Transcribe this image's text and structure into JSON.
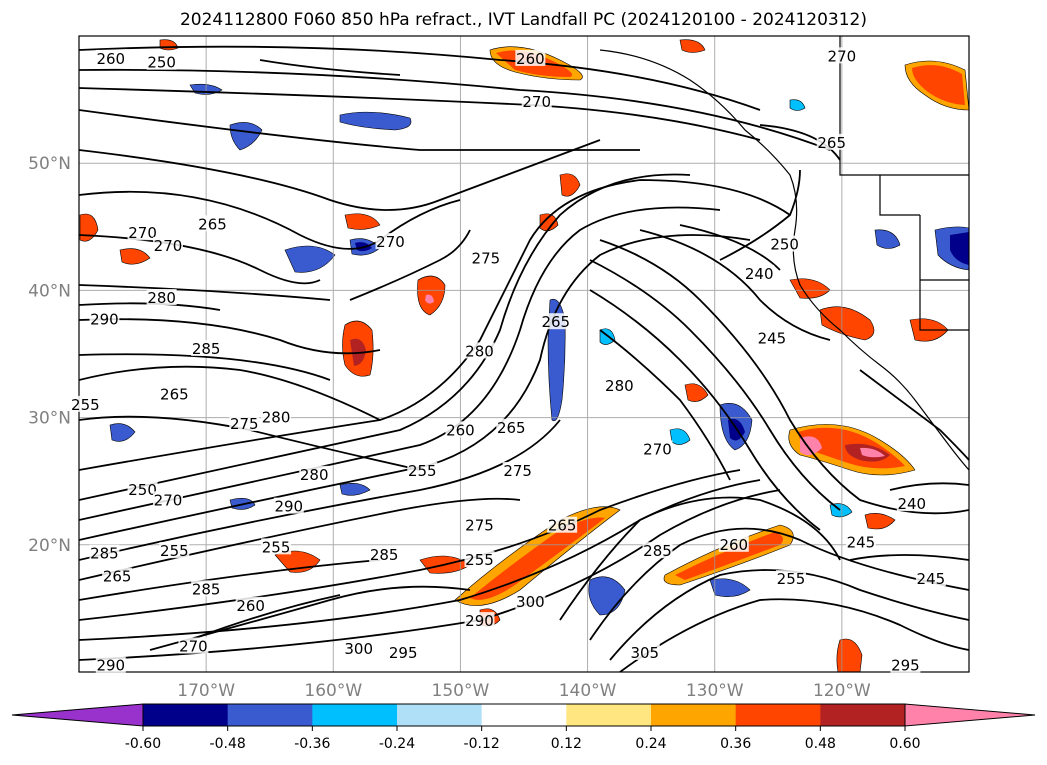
{
  "title": "2024112800 F060 850 hPa refract., IVT Landfall PC (2024120100 - 2024120312)",
  "lat_labels": [
    {
      "lat": 50,
      "text": "50°N"
    },
    {
      "lat": 40,
      "text": "40°N"
    },
    {
      "lat": 30,
      "text": "30°N"
    },
    {
      "lat": 20,
      "text": "20°N"
    }
  ],
  "lon_labels": [
    {
      "lon": -170,
      "text": "170°W"
    },
    {
      "lon": -160,
      "text": "160°W"
    },
    {
      "lon": -150,
      "text": "150°W"
    },
    {
      "lon": -140,
      "text": "140°W"
    },
    {
      "lon": -130,
      "text": "130°W"
    },
    {
      "lon": -120,
      "text": "120°W"
    }
  ],
  "extent": {
    "lon_min": -180,
    "lon_max": -110,
    "lat_min": 10,
    "lat_max": 60
  },
  "colorbar": {
    "ticks": [
      "-0.60",
      "-0.48",
      "-0.36",
      "-0.24",
      "-0.12",
      "0.12",
      "0.24",
      "0.36",
      "0.48",
      "0.60"
    ],
    "colors": [
      "#9932cc",
      "#00008b",
      "#3a5bd0",
      "#00bfff",
      "#b0e0f8",
      "#ffffff",
      "#ffe680",
      "#ffa500",
      "#ff4500",
      "#b22222",
      "#ff82ab"
    ]
  },
  "contour_labels": [
    {
      "text": "260",
      "lon": -177.5,
      "lat": 58.2
    },
    {
      "text": "250",
      "lon": -173.5,
      "lat": 57.9
    },
    {
      "text": "260",
      "lon": -144.5,
      "lat": 58.2
    },
    {
      "text": "270",
      "lon": -144.0,
      "lat": 54.8
    },
    {
      "text": "270",
      "lon": -120.0,
      "lat": 58.4
    },
    {
      "text": "265",
      "lon": -120.8,
      "lat": 51.6
    },
    {
      "text": "265",
      "lon": -169.5,
      "lat": 45.2
    },
    {
      "text": "270",
      "lon": -175.0,
      "lat": 44.5
    },
    {
      "text": "270",
      "lon": -173.0,
      "lat": 43.5
    },
    {
      "text": "270",
      "lon": -155.5,
      "lat": 43.8
    },
    {
      "text": "275",
      "lon": -148.0,
      "lat": 42.5
    },
    {
      "text": "250",
      "lon": -124.5,
      "lat": 43.6
    },
    {
      "text": "240",
      "lon": -126.5,
      "lat": 41.3
    },
    {
      "text": "280",
      "lon": -173.5,
      "lat": 39.4
    },
    {
      "text": "290",
      "lon": -178.0,
      "lat": 37.7
    },
    {
      "text": "265",
      "lon": -142.5,
      "lat": 37.5
    },
    {
      "text": "245",
      "lon": -125.5,
      "lat": 36.2
    },
    {
      "text": "285",
      "lon": -170.0,
      "lat": 35.4
    },
    {
      "text": "280",
      "lon": -148.5,
      "lat": 35.2
    },
    {
      "text": "280",
      "lon": -137.5,
      "lat": 32.5
    },
    {
      "text": "265",
      "lon": -172.5,
      "lat": 31.8
    },
    {
      "text": "275",
      "lon": -167.0,
      "lat": 29.5
    },
    {
      "text": "280",
      "lon": -164.5,
      "lat": 30.0
    },
    {
      "text": "255",
      "lon": -179.5,
      "lat": 31.0
    },
    {
      "text": "260",
      "lon": -150.0,
      "lat": 29.0
    },
    {
      "text": "265",
      "lon": -146.0,
      "lat": 29.2
    },
    {
      "text": "270",
      "lon": -134.5,
      "lat": 27.5
    },
    {
      "text": "280",
      "lon": -161.5,
      "lat": 25.5
    },
    {
      "text": "255",
      "lon": -153.0,
      "lat": 25.8
    },
    {
      "text": "275",
      "lon": -145.5,
      "lat": 25.8
    },
    {
      "text": "250",
      "lon": -175.0,
      "lat": 24.3
    },
    {
      "text": "270",
      "lon": -173.0,
      "lat": 23.5
    },
    {
      "text": "290",
      "lon": -163.5,
      "lat": 23.0
    },
    {
      "text": "240",
      "lon": -114.5,
      "lat": 23.2
    },
    {
      "text": "275",
      "lon": -148.5,
      "lat": 21.5
    },
    {
      "text": "265",
      "lon": -142.0,
      "lat": 21.5
    },
    {
      "text": "285",
      "lon": -178.0,
      "lat": 19.3
    },
    {
      "text": "255",
      "lon": -172.5,
      "lat": 19.5
    },
    {
      "text": "255",
      "lon": -164.5,
      "lat": 19.8
    },
    {
      "text": "285",
      "lon": -156.0,
      "lat": 19.2
    },
    {
      "text": "255",
      "lon": -148.5,
      "lat": 18.8
    },
    {
      "text": "285",
      "lon": -134.5,
      "lat": 19.5
    },
    {
      "text": "260",
      "lon": -128.5,
      "lat": 20.0
    },
    {
      "text": "245",
      "lon": -118.5,
      "lat": 20.2
    },
    {
      "text": "265",
      "lon": -177.0,
      "lat": 17.5
    },
    {
      "text": "285",
      "lon": -170.0,
      "lat": 16.5
    },
    {
      "text": "255",
      "lon": -124.0,
      "lat": 17.3
    },
    {
      "text": "245",
      "lon": -113.0,
      "lat": 17.3
    },
    {
      "text": "300",
      "lon": -144.5,
      "lat": 15.5
    },
    {
      "text": "260",
      "lon": -166.5,
      "lat": 15.2
    },
    {
      "text": "290",
      "lon": -148.5,
      "lat": 14.0
    },
    {
      "text": "270",
      "lon": -171.0,
      "lat": 12.0
    },
    {
      "text": "300",
      "lon": -158.0,
      "lat": 11.8
    },
    {
      "text": "295",
      "lon": -154.5,
      "lat": 11.5
    },
    {
      "text": "305",
      "lon": -135.5,
      "lat": 11.5
    },
    {
      "text": "290",
      "lon": -177.5,
      "lat": 10.5
    },
    {
      "text": "295",
      "lon": -115.0,
      "lat": 10.5
    }
  ]
}
